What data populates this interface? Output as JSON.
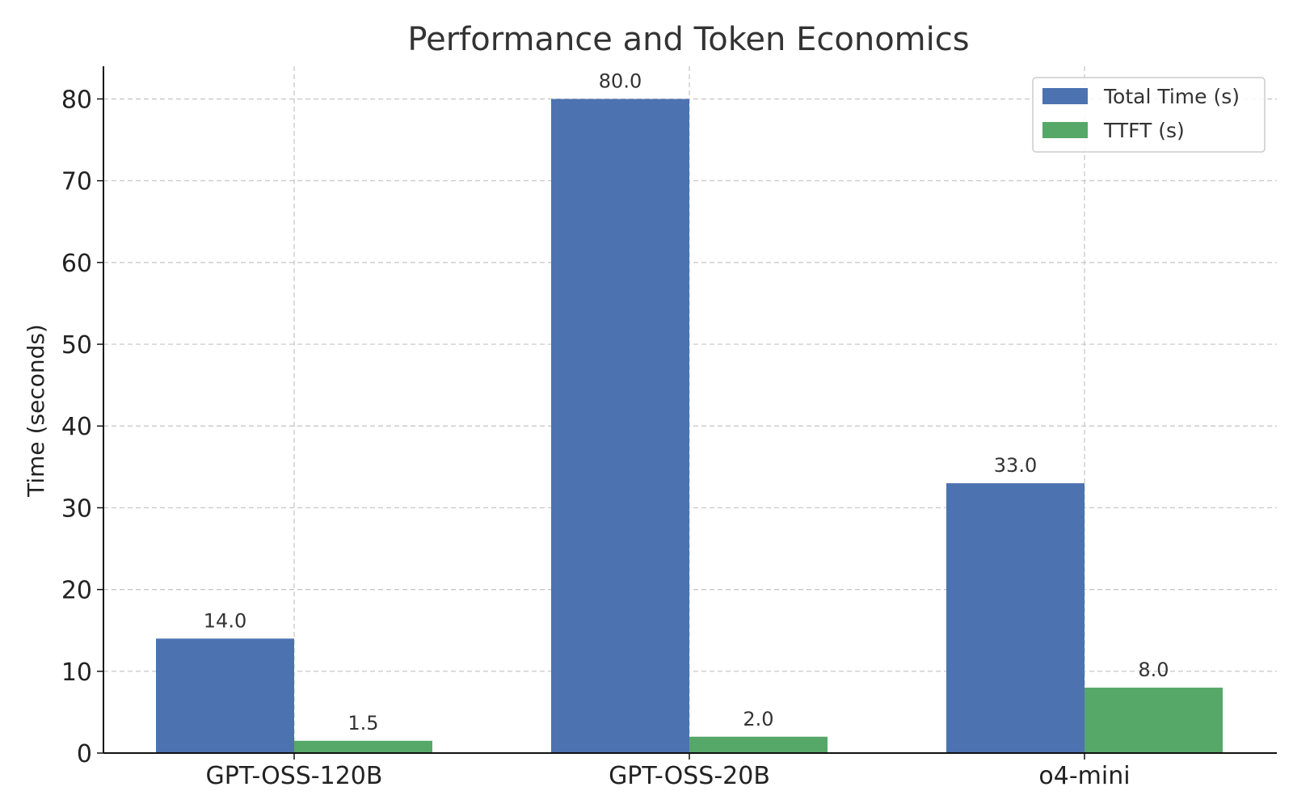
{
  "chart_data": {
    "type": "bar",
    "title": "Performance and Token Economics",
    "xlabel": "",
    "ylabel": "Time (seconds)",
    "categories": [
      "GPT-OSS-120B",
      "GPT-OSS-20B",
      "o4-mini"
    ],
    "series": [
      {
        "name": "Total Time (s)",
        "color": "#4c72b0",
        "values": [
          14.0,
          80.0,
          33.0
        ],
        "labels": [
          "14.0",
          "80.0",
          "33.0"
        ]
      },
      {
        "name": "TTFT (s)",
        "color": "#55a868",
        "values": [
          1.5,
          2.0,
          8.0
        ],
        "labels": [
          "1.5",
          "2.0",
          "8.0"
        ]
      }
    ],
    "ylim": [
      0,
      84
    ],
    "yticks": [
      0,
      10,
      20,
      30,
      40,
      50,
      60,
      70,
      80
    ],
    "ytick_labels": [
      "0",
      "10",
      "20",
      "30",
      "40",
      "50",
      "60",
      "70",
      "80"
    ],
    "grid": true,
    "legend_position": "top-right"
  }
}
